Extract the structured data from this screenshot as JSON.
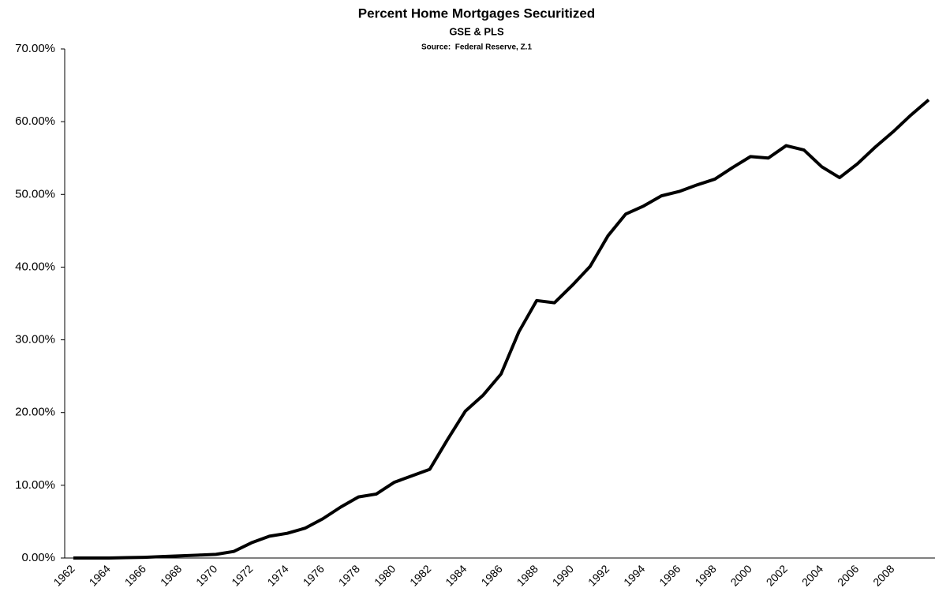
{
  "chart_data": {
    "type": "line",
    "title": "Percent Home Mortgages Securitized",
    "subtitle": "GSE & PLS",
    "source": "Source:  Federal Reserve, Z.1",
    "categories": [
      "1962",
      null,
      "1964",
      null,
      "1966",
      null,
      "1968",
      null,
      "1970",
      null,
      "1972",
      null,
      "1974",
      null,
      "1976",
      null,
      "1978",
      null,
      "1980",
      null,
      "1982",
      null,
      "1984",
      null,
      "1986",
      null,
      "1988",
      null,
      "1990",
      null,
      "1992",
      null,
      "1994",
      null,
      "1996",
      null,
      "1998",
      null,
      "2000",
      null,
      "2002",
      null,
      "2004",
      null,
      "2006",
      null,
      "2008",
      null,
      null
    ],
    "series": [
      {
        "color": "#000000",
        "values": [
          0.0,
          0.0,
          0.0,
          0.05,
          0.1,
          0.2,
          0.3,
          0.4,
          0.5,
          0.9,
          2.1,
          3.0,
          3.4,
          4.1,
          5.4,
          7.0,
          8.4,
          8.8,
          10.4,
          11.3,
          12.2,
          16.3,
          20.2,
          22.4,
          25.3,
          31.1,
          35.4,
          35.1,
          37.5,
          40.1,
          44.3,
          47.3,
          48.4,
          49.8,
          50.4,
          51.3,
          52.1,
          53.7,
          55.2,
          55.0,
          56.7,
          56.1,
          53.8,
          52.3,
          54.2,
          56.5,
          58.6,
          60.9,
          63.0
        ]
      }
    ],
    "ylim": [
      0,
      70
    ],
    "yticks": [
      {
        "value": 0,
        "label": "0.00%"
      },
      {
        "value": 10,
        "label": "10.00%"
      },
      {
        "value": 20,
        "label": "20.00%"
      },
      {
        "value": 30,
        "label": "30.00%"
      },
      {
        "value": 40,
        "label": "40.00%"
      },
      {
        "value": 50,
        "label": "50.00%"
      },
      {
        "value": 60,
        "label": "60.00%"
      },
      {
        "value": 70,
        "label": "70.00%"
      }
    ],
    "grid": false
  }
}
